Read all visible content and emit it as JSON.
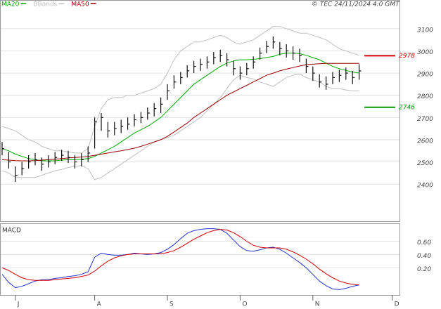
{
  "source": "© TEC 24/11/2024 4:0 GMT",
  "chart_data": [
    {
      "type": "ohlc",
      "ylim": [
        2233,
        3226
      ],
      "yticks": [
        2400,
        2500,
        2600,
        2700,
        2800,
        2900,
        3000,
        3100
      ],
      "grid": true,
      "bar_color": "#111111",
      "high": [
        2590,
        2545,
        2480,
        2500,
        2530,
        2540,
        2520,
        2530,
        2545,
        2555,
        2550,
        2530,
        2540,
        2570,
        2700,
        2720,
        2680,
        2680,
        2690,
        2700,
        2715,
        2725,
        2745,
        2765,
        2790,
        2850,
        2890,
        2905,
        2935,
        2955,
        2965,
        2975,
        2995,
        3005,
        2990,
        2955,
        2930,
        2945,
        2975,
        3015,
        3045,
        3065,
        3040,
        3030,
        3020,
        3010,
        2965,
        2930,
        2895,
        2885,
        2905,
        2915,
        2925,
        2910,
        2940,
        null,
        null,
        null,
        null,
        null
      ],
      "low": [
        2530,
        2470,
        2410,
        2440,
        2470,
        2485,
        2460,
        2475,
        2490,
        2505,
        2495,
        2470,
        2480,
        2500,
        2560,
        2640,
        2610,
        2620,
        2630,
        2645,
        2660,
        2675,
        2690,
        2705,
        2720,
        2780,
        2830,
        2850,
        2880,
        2900,
        2910,
        2920,
        2940,
        2950,
        2930,
        2890,
        2870,
        2890,
        2920,
        2960,
        2990,
        3010,
        2980,
        2970,
        2960,
        2950,
        2900,
        2865,
        2835,
        2825,
        2850,
        2860,
        2870,
        2850,
        2870,
        null,
        null,
        null,
        null,
        null
      ],
      "close": [
        2560,
        2500,
        2440,
        2470,
        2500,
        2510,
        2490,
        2500,
        2520,
        2530,
        2520,
        2500,
        2510,
        2540,
        2680,
        2700,
        2640,
        2650,
        2660,
        2670,
        2690,
        2700,
        2720,
        2740,
        2760,
        2820,
        2860,
        2880,
        2910,
        2930,
        2940,
        2950,
        2970,
        2980,
        2960,
        2920,
        2900,
        2920,
        2950,
        2990,
        3020,
        3040,
        3010,
        3000,
        2990,
        2980,
        2930,
        2900,
        2860,
        2850,
        2880,
        2890,
        2900,
        2880,
        2910,
        null,
        null,
        null,
        null,
        null
      ],
      "series": [
        {
          "name": "MA20",
          "color": "#00aa00",
          "values": [
            2560,
            2550,
            2535,
            2525,
            2515,
            2510,
            2505,
            2505,
            2505,
            2508,
            2510,
            2510,
            2512,
            2515,
            2525,
            2540,
            2555,
            2570,
            2590,
            2610,
            2630,
            2645,
            2660,
            2680,
            2700,
            2730,
            2760,
            2790,
            2820,
            2850,
            2870,
            2890,
            2910,
            2930,
            2945,
            2955,
            2960,
            2960,
            2962,
            2965,
            2970,
            2975,
            2985,
            2990,
            2990,
            2988,
            2980,
            2970,
            2960,
            2945,
            2930,
            2920,
            2912,
            2905,
            2900,
            null,
            null,
            null,
            null,
            null
          ]
        },
        {
          "name": "BBands",
          "color": "#c0c0c0",
          "upper": [
            2660,
            2650,
            2640,
            2620,
            2600,
            2590,
            2570,
            2560,
            2550,
            2550,
            2545,
            2540,
            2540,
            2560,
            2660,
            2740,
            2780,
            2790,
            2790,
            2800,
            2800,
            2810,
            2820,
            2830,
            2850,
            2900,
            2960,
            3000,
            3020,
            3040,
            3040,
            3050,
            3060,
            3070,
            3060,
            3040,
            3030,
            3040,
            3050,
            3070,
            3090,
            3110,
            3110,
            3100,
            3090,
            3080,
            3080,
            3070,
            3060,
            3050,
            3030,
            3010,
            3000,
            2990,
            2980,
            null,
            null,
            null,
            null,
            null
          ],
          "lower": [
            2460,
            2450,
            2430,
            2430,
            2430,
            2430,
            2440,
            2450,
            2460,
            2466,
            2475,
            2480,
            2484,
            2470,
            2420,
            2430,
            2450,
            2470,
            2490,
            2510,
            2530,
            2550,
            2570,
            2590,
            2600,
            2610,
            2620,
            2640,
            2660,
            2680,
            2700,
            2730,
            2760,
            2790,
            2830,
            2870,
            2890,
            2880,
            2874,
            2860,
            2850,
            2840,
            2860,
            2880,
            2890,
            2896,
            2880,
            2870,
            2860,
            2840,
            2830,
            2830,
            2824,
            2820,
            2820,
            null,
            null,
            null,
            null,
            null
          ]
        },
        {
          "name": "MA50",
          "color": "#990000",
          "values": [
            2510,
            2508,
            2506,
            2505,
            2505,
            2506,
            2508,
            2510,
            2512,
            2515,
            2518,
            2520,
            2522,
            2525,
            2530,
            2535,
            2540,
            2545,
            2550,
            2556,
            2562,
            2570,
            2580,
            2590,
            2600,
            2615,
            2635,
            2655,
            2675,
            2700,
            2720,
            2740,
            2760,
            2780,
            2800,
            2815,
            2830,
            2845,
            2860,
            2875,
            2890,
            2900,
            2910,
            2918,
            2925,
            2932,
            2938,
            2940,
            2942,
            2944,
            2944,
            2944,
            2944,
            2944,
            2944,
            null,
            null,
            null,
            null,
            null
          ]
        }
      ],
      "markers": [
        {
          "value": 2978,
          "color": "#cc0000"
        },
        {
          "value": 2746,
          "color": "#009900"
        }
      ]
    },
    {
      "type": "line",
      "title": "MACD",
      "categories": [
        null,
        null,
        "J",
        null,
        null,
        null,
        null,
        null,
        null,
        null,
        null,
        null,
        null,
        null,
        "A",
        null,
        null,
        null,
        null,
        null,
        null,
        null,
        null,
        null,
        null,
        "S",
        null,
        null,
        null,
        null,
        null,
        null,
        null,
        null,
        null,
        null,
        "O",
        null,
        null,
        null,
        null,
        null,
        null,
        null,
        null,
        null,
        null,
        "N",
        null,
        null,
        null,
        null,
        null,
        null,
        null,
        null,
        null,
        null,
        null,
        "D"
      ],
      "ylim": [
        -0.21,
        0.86
      ],
      "yticks": [
        {
          "value": 0.2,
          "label": "0.20"
        },
        {
          "value": 0.4,
          "label": "0.40"
        },
        {
          "value": 0.6,
          "label": "0.60"
        }
      ],
      "grid": true,
      "series": [
        {
          "color": "#2233cc",
          "values": [
            0.1,
            -0.02,
            -0.1,
            -0.08,
            -0.04,
            0.0,
            0.02,
            0.02,
            0.04,
            0.05,
            0.07,
            0.08,
            0.1,
            0.14,
            0.36,
            0.42,
            0.4,
            0.39,
            0.39,
            0.4,
            0.42,
            0.41,
            0.4,
            0.41,
            0.43,
            0.48,
            0.55,
            0.64,
            0.72,
            0.76,
            0.78,
            0.79,
            0.79,
            0.78,
            0.72,
            0.62,
            0.52,
            0.46,
            0.45,
            0.47,
            0.5,
            0.51,
            0.48,
            0.42,
            0.35,
            0.28,
            0.2,
            0.1,
            0.0,
            -0.07,
            -0.12,
            -0.13,
            -0.11,
            -0.08,
            -0.06,
            null,
            null,
            null,
            null,
            null
          ]
        },
        {
          "color": "#cc0000",
          "values": [
            0.2,
            0.16,
            0.1,
            0.05,
            0.02,
            0.01,
            0.01,
            0.01,
            0.02,
            0.03,
            0.04,
            0.05,
            0.07,
            0.09,
            0.15,
            0.23,
            0.3,
            0.35,
            0.38,
            0.4,
            0.41,
            0.41,
            0.41,
            0.41,
            0.41,
            0.43,
            0.46,
            0.51,
            0.57,
            0.63,
            0.68,
            0.73,
            0.76,
            0.78,
            0.77,
            0.73,
            0.67,
            0.6,
            0.54,
            0.51,
            0.5,
            0.5,
            0.5,
            0.48,
            0.44,
            0.39,
            0.33,
            0.26,
            0.18,
            0.11,
            0.05,
            0.0,
            -0.03,
            -0.05,
            -0.06,
            null,
            null,
            null,
            null,
            null
          ]
        }
      ]
    }
  ]
}
